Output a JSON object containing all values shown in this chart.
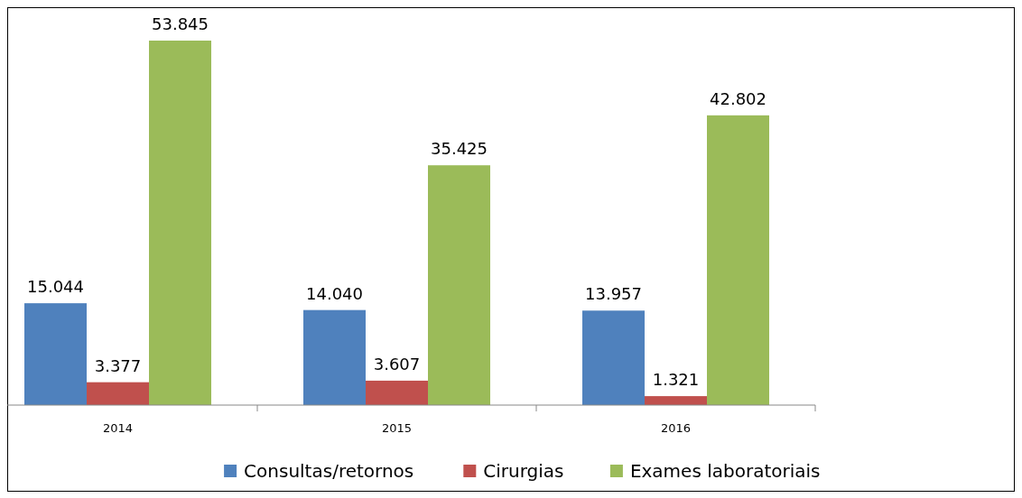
{
  "chart_data": {
    "type": "bar",
    "categories": [
      "2014",
      "2015",
      "2016"
    ],
    "series": [
      {
        "name": "Consultas/retornos",
        "color": "#4f81bd",
        "values": [
          15044,
          14040,
          13957
        ],
        "value_labels": [
          "15.044",
          "14.040",
          "13.957"
        ]
      },
      {
        "name": "Cirurgias",
        "color": "#c0504d",
        "values": [
          3377,
          3607,
          1321
        ],
        "value_labels": [
          "3.377",
          "3.607",
          "1.321"
        ]
      },
      {
        "name": "Exames laboratoriais",
        "color": "#9bbb59",
        "values": [
          53845,
          35425,
          42802
        ],
        "value_labels": [
          "53.845",
          "35.425",
          "42.802"
        ]
      }
    ],
    "legend": "bottom"
  }
}
